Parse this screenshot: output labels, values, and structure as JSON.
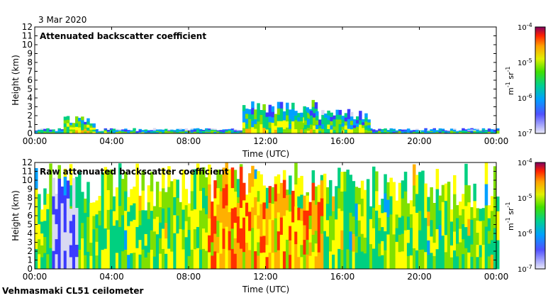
{
  "date_label": "3 Mar 2020",
  "footer_label": "Vehmasmaki CL51 ceilometer",
  "colors": {
    "low": "#d9d9f2",
    "scale": [
      "#d9d9f2",
      "#3b3bff",
      "#00a0ff",
      "#00d080",
      "#80e000",
      "#ffff00",
      "#ffb000",
      "#ff3000",
      "#900060"
    ]
  },
  "chart_data": [
    {
      "type": "heatmap",
      "title": "Attenuated backscatter coefficient",
      "xlabel": "Time (UTC)",
      "ylabel": "Height (km)",
      "xlim": [
        0,
        24
      ],
      "ylim": [
        0,
        12
      ],
      "x_ticks": [
        "00:00",
        "04:00",
        "08:00",
        "12:00",
        "16:00",
        "20:00",
        "00:00"
      ],
      "y_ticks": [
        "0",
        "1",
        "2",
        "3",
        "4",
        "5",
        "6",
        "7",
        "8",
        "9",
        "10",
        "11",
        "12"
      ],
      "colorbar": {
        "ticks": [
          "10",
          "10",
          "10",
          "10"
        ],
        "exponents": [
          "-7",
          "-6",
          "-5",
          "-4"
        ],
        "label_parts": [
          "m",
          "-1",
          " sr",
          "-1"
        ]
      },
      "features": [
        {
          "hours": [
            0,
            24
          ],
          "top_km": 0.6,
          "level": 0.45
        },
        {
          "hours": [
            1.5,
            3
          ],
          "top_km": 2.0,
          "level": 0.6
        },
        {
          "hours": [
            10.8,
            14.6
          ],
          "top_km": 3.8,
          "level": 0.55
        },
        {
          "hours": [
            14.0,
            17.4
          ],
          "top_km": 2.8,
          "level": 0.5
        }
      ]
    },
    {
      "type": "heatmap",
      "title": "Raw attenuated backscatter coefficient",
      "xlabel": "Time (UTC)",
      "ylabel": "Height (km)",
      "xlim": [
        0,
        24
      ],
      "ylim": [
        0,
        12
      ],
      "x_ticks": [
        "00:00",
        "04:00",
        "08:00",
        "12:00",
        "16:00",
        "20:00",
        "00:00"
      ],
      "y_ticks": [
        "0",
        "1",
        "2",
        "3",
        "4",
        "5",
        "6",
        "7",
        "8",
        "9",
        "10",
        "11",
        "12"
      ],
      "colorbar": {
        "ticks": [
          "10",
          "10",
          "10",
          "10"
        ],
        "exponents": [
          "-7",
          "-6",
          "-5",
          "-4"
        ],
        "label_parts": [
          "m",
          "-1",
          " sr",
          "-1"
        ]
      },
      "features": [
        {
          "hours": [
            0,
            24
          ],
          "top_km": 12,
          "level": 0.5
        },
        {
          "hours": [
            0.9,
            2.1
          ],
          "top_km": 12,
          "level": 0.05
        },
        {
          "hours": [
            9,
            15
          ],
          "top_km": 12,
          "level": 0.7
        }
      ]
    }
  ]
}
